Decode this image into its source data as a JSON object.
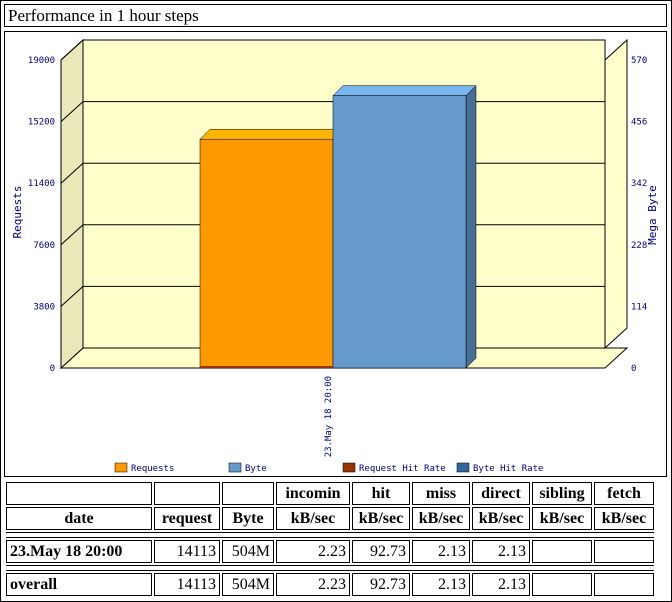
{
  "title": "Performance in 1 hour steps",
  "chart_data": {
    "type": "bar",
    "categories": [
      "23.May 18 20:00"
    ],
    "left_axis": {
      "label": "Requests",
      "ylim": [
        0,
        19000
      ],
      "ticks": [
        "0",
        "3800",
        "7600",
        "11400",
        "15200",
        "19000"
      ]
    },
    "right_axis": {
      "label": "Mega Byte",
      "ylim": [
        0,
        570
      ],
      "ticks": [
        "0",
        "114",
        "228",
        "342",
        "456",
        "570"
      ]
    },
    "series": [
      {
        "name": "Requests",
        "axis": "left",
        "values": [
          14113
        ],
        "color": "#ff9900"
      },
      {
        "name": "Byte",
        "axis": "right",
        "values": [
          504
        ],
        "color": "#6699cc"
      },
      {
        "name": "Request Hit Rate",
        "axis": "left",
        "values": [
          0
        ],
        "color": "#993300"
      },
      {
        "name": "Byte Hit Rate",
        "axis": "right",
        "values": [
          0
        ],
        "color": "#336699"
      }
    ],
    "plot_background": "#ffffcc",
    "grid": true,
    "legend_position": "bottom"
  },
  "table": {
    "header_row1": [
      "",
      "",
      "",
      "incomin",
      "hit",
      "miss",
      "direct",
      "sibling",
      "fetch"
    ],
    "header_row2": [
      "date",
      "request",
      "Byte",
      "kB/sec",
      "kB/sec",
      "kB/sec",
      "kB/sec",
      "kB/sec",
      "kB/sec"
    ],
    "rows": [
      [
        "23.May 18 20:00",
        "14113",
        "504M",
        "2.23",
        "92.73",
        "2.13",
        "2.13",
        "",
        ""
      ]
    ],
    "overall": [
      "overall",
      "14113",
      "504M",
      "2.23",
      "92.73",
      "2.13",
      "2.13",
      "",
      ""
    ]
  }
}
